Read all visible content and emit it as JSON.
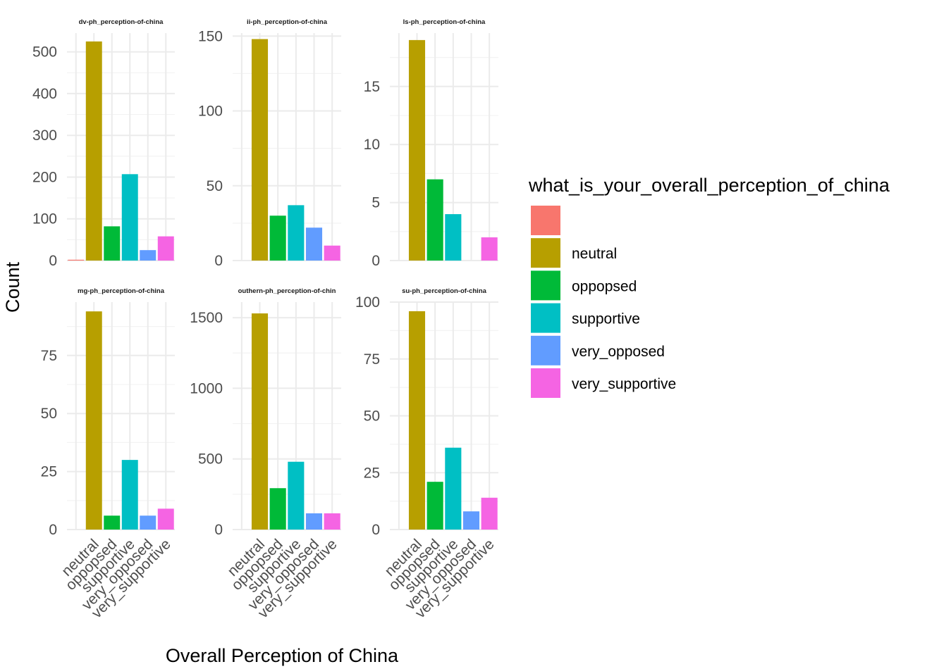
{
  "chart_data": {
    "type": "bar",
    "xlabel": "Overall Perception of China",
    "ylabel": "Count",
    "categories": [
      "",
      "neutral",
      "oppopsed",
      "supportive",
      "very_opposed",
      "very_supportive"
    ],
    "x_tick_labels": [
      "neutral",
      "oppopsed",
      "supportive",
      "very_opposed",
      "very_supportive"
    ],
    "legend": {
      "title": "what_is_your_overall_perception_of_china",
      "position": "right",
      "items": [
        {
          "label": "",
          "color": "#F8766D"
        },
        {
          "label": "neutral",
          "color": "#B79F00"
        },
        {
          "label": "oppopsed",
          "color": "#00BA38"
        },
        {
          "label": "supportive",
          "color": "#00BFC4"
        },
        {
          "label": "very_opposed",
          "color": "#619CFF"
        },
        {
          "label": "very_supportive",
          "color": "#F564E3"
        }
      ]
    },
    "colors": [
      "#F8766D",
      "#B79F00",
      "#00BA38",
      "#00BFC4",
      "#619CFF",
      "#F564E3"
    ],
    "grid": true,
    "facets": [
      {
        "title": "dv-ph_perception-of-china",
        "values": [
          2,
          525,
          82,
          207,
          25,
          58
        ],
        "ylim": [
          0,
          545
        ],
        "y_ticks": [
          0,
          100,
          200,
          300,
          400,
          500
        ]
      },
      {
        "title": "ii-ph_perception-of-china",
        "values": [
          0,
          148,
          30,
          37,
          22,
          10
        ],
        "ylim": [
          0,
          152
        ],
        "y_ticks": [
          0,
          50,
          100,
          150
        ]
      },
      {
        "title": "ls-ph_perception-of-china",
        "values": [
          0,
          19,
          7,
          4,
          0,
          2
        ],
        "ylim": [
          0,
          19.6
        ],
        "y_ticks": [
          0,
          5,
          10,
          15
        ]
      },
      {
        "title": "mg-ph_perception-of-china",
        "values": [
          0,
          94,
          6,
          30,
          6,
          9
        ],
        "ylim": [
          0,
          98
        ],
        "y_ticks": [
          0,
          25,
          50,
          75
        ]
      },
      {
        "title": "outhern-ph_perception-of-chin",
        "values": [
          0,
          1530,
          293,
          480,
          115,
          115
        ],
        "ylim": [
          0,
          1610
        ],
        "y_ticks": [
          0,
          500,
          1000,
          1500
        ]
      },
      {
        "title": "su-ph_perception-of-china",
        "values": [
          0,
          96,
          21,
          36,
          8,
          14
        ],
        "ylim": [
          0,
          100
        ],
        "y_ticks": [
          0,
          25,
          50,
          75,
          100
        ]
      }
    ]
  }
}
